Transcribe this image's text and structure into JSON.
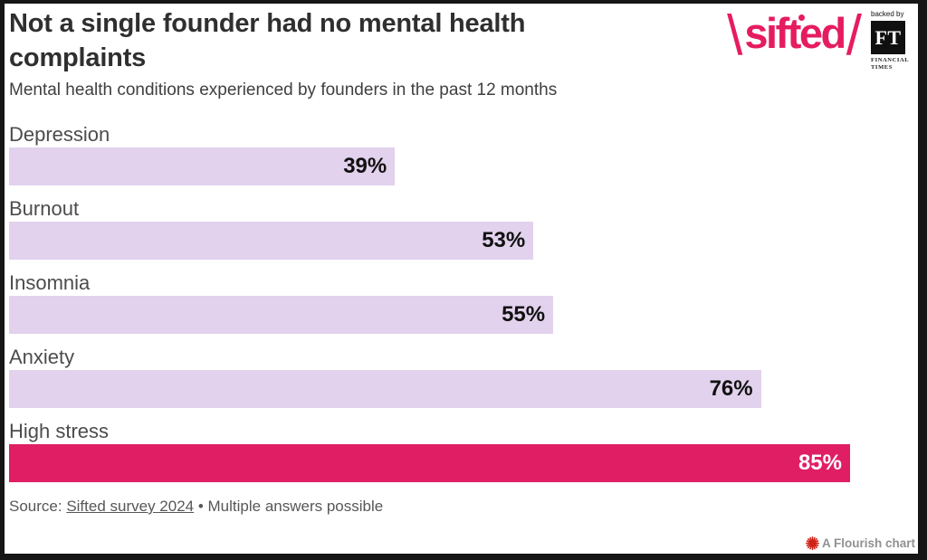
{
  "header": {
    "title": "Not a single founder had no mental health complaints",
    "subtitle": "Mental health conditions experienced by founders in the past 12 months"
  },
  "logo": {
    "backslash": "\\",
    "brand": "sifted",
    "slash": "/",
    "color": "#e61c60",
    "badge": {
      "backed_by": "backed by",
      "ft": "FT",
      "financial": "FINANCIAL",
      "times": "TIMES"
    }
  },
  "chart_data": {
    "type": "bar",
    "orientation": "horizontal",
    "title": "Not a single founder had no mental health complaints",
    "subtitle": "Mental health conditions experienced by founders in the past 12 months",
    "categories": [
      "Depression",
      "Burnout",
      "Insomnia",
      "Anxiety",
      "High stress"
    ],
    "values": [
      39,
      53,
      55,
      76,
      85
    ],
    "value_labels": [
      "39%",
      "53%",
      "55%",
      "76%",
      "85%"
    ],
    "bar_colors": [
      "#e2d2ed",
      "#e2d2ed",
      "#e2d2ed",
      "#e2d2ed",
      "#e01e64"
    ],
    "value_label_colors": [
      "#111111",
      "#111111",
      "#111111",
      "#111111",
      "#ffffff"
    ],
    "xmax": 85,
    "grid": false,
    "legend": false
  },
  "footer": {
    "source_prefix": "Source: ",
    "source_link": "Sifted survey 2024",
    "source_suffix": " • Multiple answers possible",
    "flourish_credit": "A Flourish chart",
    "flourish_icon_color": "#cf2217"
  }
}
